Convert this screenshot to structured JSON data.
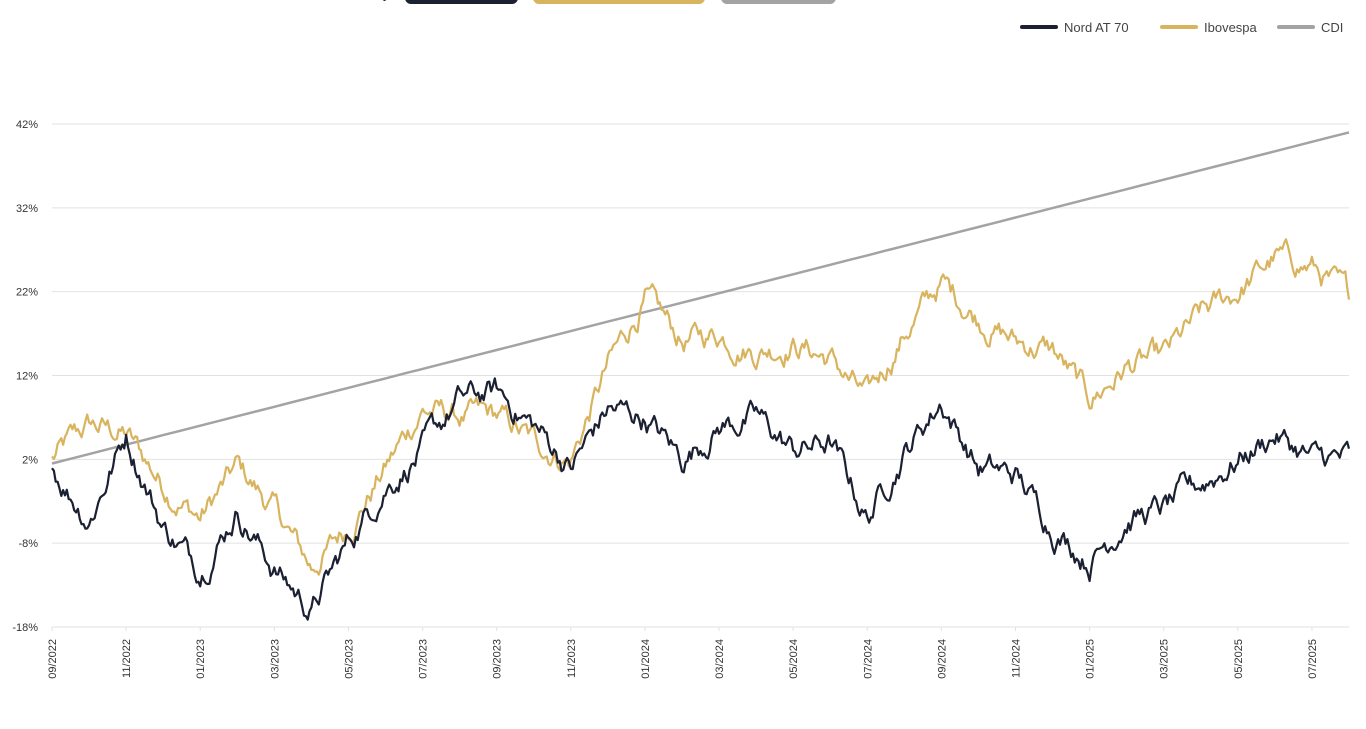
{
  "colors": {
    "nord": "#1b2032",
    "ibovespa": "#d9b45f",
    "cdi": "#a3a3a3",
    "grid": "#e2e2e2",
    "tick": "#333333"
  },
  "buttons": [
    {
      "series": "nord"
    },
    {
      "series": "ibovespa"
    },
    {
      "series": "cdi"
    }
  ],
  "chart_data": {
    "type": "line",
    "title": "",
    "xlabel": "",
    "ylabel": "",
    "ylim": [
      -18,
      42
    ],
    "y_ticks": [
      -18,
      -8,
      2,
      12,
      22,
      32,
      42
    ],
    "y_tick_labels": [
      "-18%",
      "-8%",
      "2%",
      "12%",
      "22%",
      "32%",
      "42%"
    ],
    "x_ticks": [
      "09/2022",
      "11/2022",
      "01/2023",
      "03/2023",
      "05/2023",
      "07/2023",
      "09/2023",
      "11/2023",
      "01/2024",
      "03/2024",
      "05/2024",
      "07/2024",
      "09/2024",
      "11/2024",
      "01/2025",
      "03/2025",
      "05/2025",
      "07/2025"
    ],
    "legend": {
      "position": "top-right",
      "entries": [
        "Nord AT 70",
        "Ibovespa",
        "CDI"
      ]
    },
    "grid": true,
    "series": [
      {
        "name": "Nord AT 70",
        "color": "#1b2032",
        "x": [
          "09/2022",
          "10/2022",
          "11/2022",
          "12/2022",
          "01/2023",
          "02/2023",
          "03/2023",
          "04/2023",
          "05/2023",
          "06/2023",
          "07/2023",
          "08/2023",
          "09/2023",
          "10/2023",
          "11/2023",
          "12/2023",
          "01/2024",
          "02/2024",
          "03/2024",
          "04/2024",
          "05/2024",
          "06/2024",
          "07/2024",
          "08/2024",
          "09/2024",
          "10/2024",
          "11/2024",
          "12/2024",
          "01/2025",
          "02/2025",
          "03/2025",
          "04/2025",
          "05/2025",
          "06/2025",
          "07/2025",
          "08/2025"
        ],
        "values": [
          1,
          -5,
          5,
          -6,
          -11,
          -4,
          -11,
          -16,
          -8,
          -1,
          3,
          9,
          10,
          6,
          1,
          8,
          7,
          2,
          6,
          7,
          3,
          4,
          -5,
          3,
          9,
          1,
          0,
          -6,
          -10,
          -5,
          -4,
          -1,
          2,
          5,
          2,
          2
        ]
      },
      {
        "name": "Ibovespa",
        "color": "#d9b45f",
        "x": [
          "09/2022",
          "10/2022",
          "11/2022",
          "12/2022",
          "01/2023",
          "02/2023",
          "03/2023",
          "04/2023",
          "05/2023",
          "06/2023",
          "07/2023",
          "08/2023",
          "09/2023",
          "10/2023",
          "11/2023",
          "12/2023",
          "01/2024",
          "02/2024",
          "03/2024",
          "04/2024",
          "05/2024",
          "06/2024",
          "07/2024",
          "08/2024",
          "09/2024",
          "10/2024",
          "11/2024",
          "12/2024",
          "01/2025",
          "02/2025",
          "03/2025",
          "04/2025",
          "05/2025",
          "06/2025",
          "07/2025",
          "08/2025"
        ],
        "values": [
          2,
          6,
          5,
          -1,
          -5,
          1,
          -4,
          -11,
          -6,
          1,
          8,
          7,
          7,
          4,
          2,
          13,
          21,
          16,
          17,
          15,
          16,
          14,
          9,
          17,
          23,
          19,
          16,
          15,
          9,
          13,
          14,
          19,
          22,
          26,
          25,
          21
        ]
      },
      {
        "name": "CDI",
        "color": "#a3a3a3",
        "x": [
          "09/2022",
          "08/2025"
        ],
        "values": [
          1.5,
          41
        ]
      }
    ]
  }
}
